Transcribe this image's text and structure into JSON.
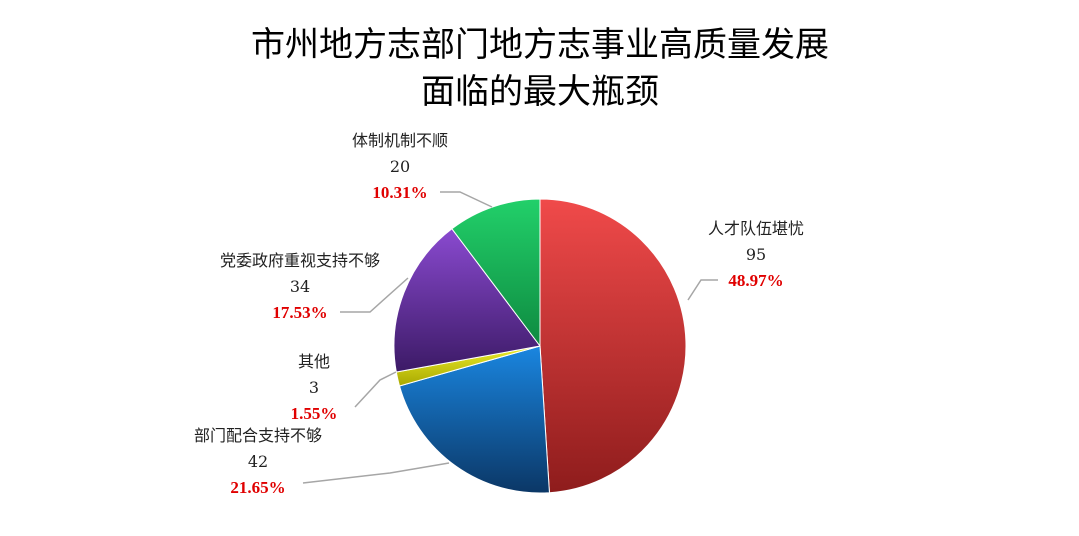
{
  "chart_data": {
    "type": "pie",
    "title": [
      "市州地方志部门地方志事业高质量发展",
      "面临的最大瓶颈"
    ],
    "slices": [
      {
        "name": "人才队伍堪忧",
        "value": 95,
        "percent": "48.97%",
        "color_light": "#f04a4a",
        "color_dark": "#8e1c1c"
      },
      {
        "name": "部门配合支持不够",
        "value": 42,
        "percent": "21.65%",
        "color_light": "#1a86e0",
        "color_dark": "#0b3766"
      },
      {
        "name": "其他",
        "value": 3,
        "percent": "1.55%",
        "color_light": "#ecec2a",
        "color_dark": "#a8a800"
      },
      {
        "name": "党委政府重视支持不够",
        "value": 34,
        "percent": "17.53%",
        "color_light": "#8a4ad0",
        "color_dark": "#3c1a66"
      },
      {
        "name": "体制机制不顺",
        "value": 20,
        "percent": "10.31%",
        "color_light": "#22d06a",
        "color_dark": "#0e8a40"
      }
    ],
    "start_angle_deg": 0,
    "direction": "clockwise",
    "legend": "none",
    "percent_label_color": "#e00000"
  }
}
